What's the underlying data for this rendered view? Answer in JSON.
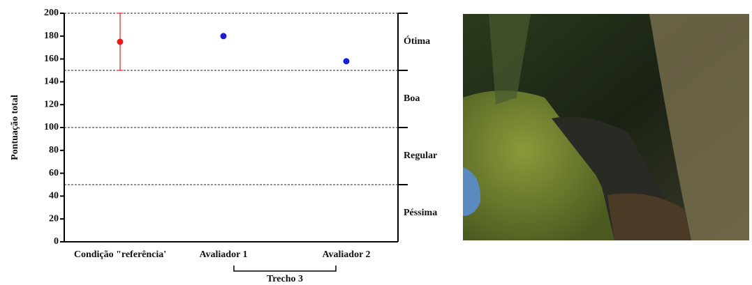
{
  "chart_data": {
    "type": "dot",
    "y_label": "Pontuação total",
    "categories": [
      "Condição \"referência'",
      "Avaliador 1",
      "Avaliador 2"
    ],
    "values": [
      175,
      180,
      158
    ],
    "errors": [
      25,
      null,
      null
    ],
    "colors": [
      "#e8191c",
      "#1c1cd6",
      "#1c1cd6"
    ],
    "ylim": [
      0,
      200
    ],
    "yticks": [
      0,
      20,
      40,
      60,
      80,
      100,
      120,
      140,
      160,
      180,
      200
    ],
    "zones": [
      {
        "label": "Ótima",
        "from": 150,
        "to": 200
      },
      {
        "label": "Boa",
        "from": 100,
        "to": 150
      },
      {
        "label": "Regular",
        "from": 50,
        "to": 100
      },
      {
        "label": "Péssima",
        "from": 0,
        "to": 50
      }
    ],
    "group_label": "Trecho 3"
  }
}
